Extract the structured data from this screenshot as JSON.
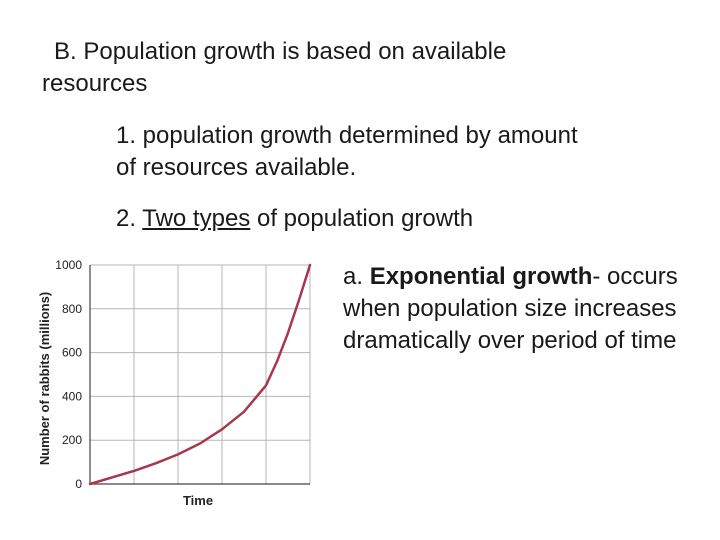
{
  "slide": {
    "heading_line1": "B. Population growth is based on available",
    "heading_line2": "resources",
    "point1_line1": "1. population growth determined by amount",
    "point1_line2": "of resources available.",
    "point2_prefix": "2. ",
    "point2_underlined": "Two types",
    "point2_suffix": " of population growth",
    "sub_a_prefix": "a. ",
    "sub_a_bold": "Exponential growth",
    "sub_a_rest": "- occurs when population size increases dramatically over period of time"
  },
  "chart_data": {
    "type": "line",
    "xlabel": "Time",
    "ylabel": "Number of rabbits (millions)",
    "ylim": [
      0,
      1000
    ],
    "yticks": [
      "0",
      "200",
      "400",
      "600",
      "800",
      "1000"
    ],
    "x_gridlines": 5,
    "grid": true,
    "line_color": "#a8374e",
    "series": [
      {
        "x": [
          0,
          0.5,
          1,
          1.5,
          2,
          2.5,
          3,
          3.5,
          4,
          4.25,
          4.5,
          4.75,
          5
        ],
        "values": [
          0,
          30,
          60,
          95,
          135,
          185,
          250,
          330,
          450,
          560,
          690,
          840,
          1000
        ]
      }
    ]
  }
}
